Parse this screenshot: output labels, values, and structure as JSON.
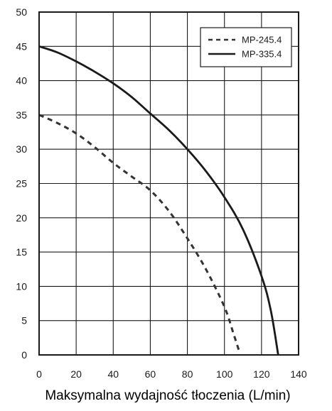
{
  "chart_data": {
    "type": "line",
    "title": "",
    "xlabel": "Maksymalna wydajność tłoczenia (L/min)",
    "ylabel": "",
    "xlim": [
      0,
      140
    ],
    "ylim": [
      0,
      50
    ],
    "x_ticks": [
      0,
      20,
      40,
      60,
      80,
      100,
      120,
      140
    ],
    "y_ticks": [
      0,
      5,
      10,
      15,
      20,
      25,
      30,
      35,
      40,
      45,
      50
    ],
    "grid": true,
    "legend_position": "top-right",
    "series": [
      {
        "name": "MP-245.4",
        "line_style": "dashed",
        "color": "#333333",
        "x": [
          0,
          10,
          20,
          30,
          40,
          50,
          60,
          70,
          80,
          90,
          100,
          105,
          108
        ],
        "y": [
          35,
          33.8,
          32.3,
          30.3,
          28,
          26,
          24,
          21,
          17,
          12.5,
          7,
          3,
          0.5
        ]
      },
      {
        "name": "MP-335.4",
        "line_style": "solid",
        "color": "#1a1a1a",
        "x": [
          0,
          10,
          20,
          30,
          40,
          50,
          60,
          70,
          80,
          90,
          100,
          110,
          120,
          125,
          129
        ],
        "y": [
          45,
          44.1,
          42.8,
          41.3,
          39.6,
          37.6,
          35.2,
          32.8,
          30,
          26.8,
          23,
          18.3,
          11.5,
          6.5,
          0
        ]
      }
    ]
  }
}
